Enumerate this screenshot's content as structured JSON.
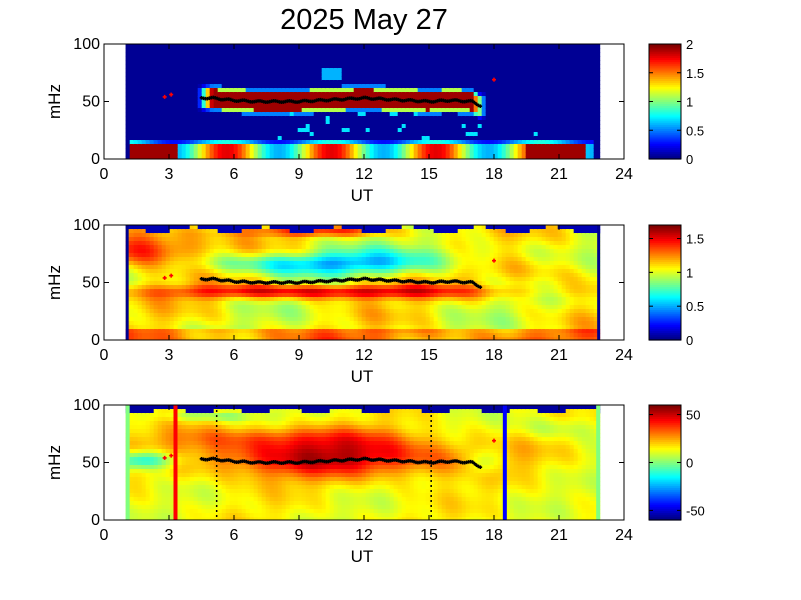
{
  "title": "2025 May 27",
  "colors": {
    "background": "#ffffff",
    "dark_blue": "#00008f",
    "ridge_marker": "#000000",
    "extra_marker": "#ff0000",
    "line_red": "#ff0000",
    "line_blue": "#0000ff",
    "edge_green": "#80ff80"
  },
  "colormap": "jet",
  "chart_data": [
    {
      "type": "heatmap",
      "panel": "top",
      "xlabel": "UT",
      "ylabel": "mHz",
      "xlim": [
        0,
        24
      ],
      "ylim": [
        0,
        100
      ],
      "xticks": [
        0,
        3,
        6,
        9,
        12,
        15,
        18,
        21,
        24
      ],
      "yticks": [
        0,
        50,
        100
      ],
      "data_extent_ut": [
        1.0,
        22.9
      ],
      "colorbar": {
        "range": [
          0,
          2
        ],
        "ticks": [
          "0",
          "0.5",
          "1",
          "1.5",
          "2"
        ]
      },
      "features": [
        {
          "desc": "strong band",
          "ut": [
            4.5,
            17.5
          ],
          "mhz_center": 50,
          "value": 2
        },
        {
          "desc": "low-frequency band",
          "ut": [
            1.0,
            22.5
          ],
          "mhz": [
            0,
            15
          ],
          "value": 1.8
        }
      ],
      "ridge": {
        "ut": [
          4.5,
          5,
          6,
          7,
          8,
          9,
          10,
          11,
          12,
          13,
          14,
          15,
          16,
          17,
          17.4
        ],
        "mhz": [
          53,
          53,
          51,
          50,
          50,
          50,
          51,
          52,
          53,
          52,
          51,
          50,
          51,
          50,
          46
        ]
      },
      "extra_points": [
        {
          "ut": 2.8,
          "mhz": 54
        },
        {
          "ut": 3.1,
          "mhz": 56
        },
        {
          "ut": 18.0,
          "mhz": 69
        }
      ]
    },
    {
      "type": "heatmap",
      "panel": "middle",
      "xlabel": "UT",
      "ylabel": "mHz",
      "xlim": [
        0,
        24
      ],
      "ylim": [
        0,
        100
      ],
      "xticks": [
        0,
        3,
        6,
        9,
        12,
        15,
        18,
        21,
        24
      ],
      "yticks": [
        0,
        50,
        100
      ],
      "data_extent_ut": [
        1.0,
        22.9
      ],
      "colorbar": {
        "range": [
          0,
          1.7
        ],
        "ticks": [
          "0",
          "0.5",
          "1",
          "1.5"
        ]
      },
      "features": [
        {
          "desc": "band below ridge",
          "ut": [
            4,
            17
          ],
          "mhz_center": 42,
          "value": 1.5
        },
        {
          "desc": "low region above ridge",
          "ut": [
            5,
            15
          ],
          "mhz_center": 65,
          "value": 0.55
        }
      ],
      "ridge": {
        "ut": [
          4.5,
          5,
          6,
          7,
          8,
          9,
          10,
          11,
          12,
          13,
          14,
          15,
          16,
          17,
          17.4
        ],
        "mhz": [
          53,
          53,
          51,
          50,
          50,
          50,
          51,
          52,
          53,
          52,
          51,
          50,
          51,
          50,
          46
        ]
      },
      "extra_points": [
        {
          "ut": 2.8,
          "mhz": 54
        },
        {
          "ut": 3.1,
          "mhz": 56
        },
        {
          "ut": 18.0,
          "mhz": 69
        }
      ]
    },
    {
      "type": "heatmap",
      "panel": "bottom",
      "xlabel": "UT",
      "ylabel": "mHz",
      "xlim": [
        0,
        24
      ],
      "ylim": [
        0,
        100
      ],
      "xticks": [
        0,
        3,
        6,
        9,
        12,
        15,
        18,
        21,
        24
      ],
      "yticks": [
        0,
        50,
        100
      ],
      "data_extent_ut": [
        1.0,
        22.9
      ],
      "colorbar": {
        "range": [
          -60,
          60
        ],
        "ticks": [
          "-50",
          "0",
          "50"
        ]
      },
      "features": [
        {
          "desc": "positive region",
          "ut": [
            4,
            17
          ],
          "mhz": [
            35,
            80
          ],
          "value": 50
        },
        {
          "desc": "negative patch",
          "ut": [
            1,
            4
          ],
          "mhz_center": 52,
          "value": -40
        }
      ],
      "ridge": {
        "ut": [
          4.5,
          5,
          6,
          7,
          8,
          9,
          10,
          11,
          12,
          13,
          14,
          15,
          16,
          17,
          17.4
        ],
        "mhz": [
          53,
          53,
          51,
          50,
          50,
          50,
          51,
          52,
          53,
          52,
          51,
          50,
          51,
          50,
          46
        ]
      },
      "extra_points": [
        {
          "ut": 2.8,
          "mhz": 54
        },
        {
          "ut": 3.1,
          "mhz": 56
        },
        {
          "ut": 18.0,
          "mhz": 69
        }
      ],
      "vertical_lines": [
        {
          "ut": 3.3,
          "color": "#ff0000",
          "style": "solid"
        },
        {
          "ut": 5.2,
          "color": "#000000",
          "style": "dotted"
        },
        {
          "ut": 15.1,
          "color": "#000000",
          "style": "dotted"
        },
        {
          "ut": 18.5,
          "color": "#0000ff",
          "style": "solid"
        }
      ]
    }
  ]
}
